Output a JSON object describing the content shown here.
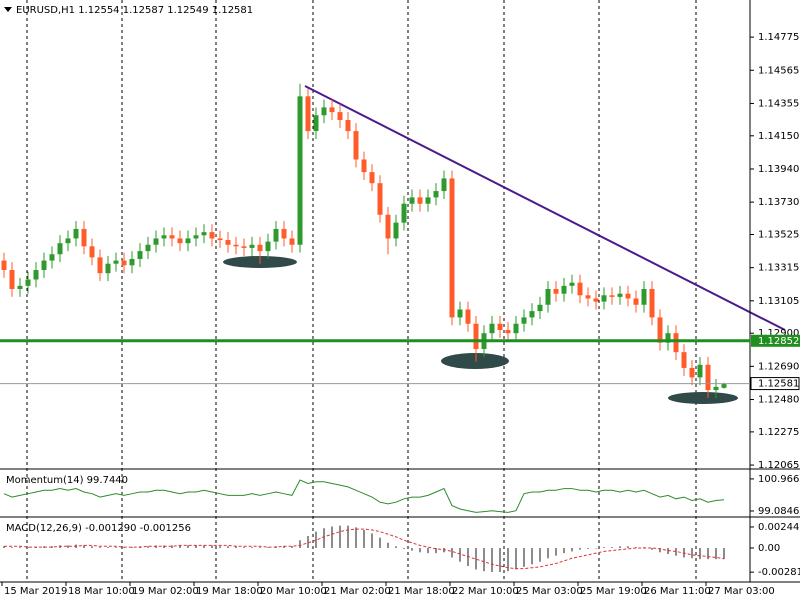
{
  "chart_data": [
    {
      "type": "candlestick",
      "title": "EURUSD,H1  1.12554 1.12587 1.12549 1.12581",
      "up_color": "#2e9a2e",
      "down_color": "#ff5b2b",
      "ylim": [
        1.1204,
        1.1501
      ],
      "yticks": [
        {
          "value": 1.14775,
          "label": "1.14775"
        },
        {
          "value": 1.14565,
          "label": "1.14565"
        },
        {
          "value": 1.14355,
          "label": "1.14355"
        },
        {
          "value": 1.1415,
          "label": "1.14150"
        },
        {
          "value": 1.1394,
          "label": "1.13940"
        },
        {
          "value": 1.1373,
          "label": "1.13730"
        },
        {
          "value": 1.13525,
          "label": "1.13525"
        },
        {
          "value": 1.13315,
          "label": "1.13315"
        },
        {
          "value": 1.13105,
          "label": "1.13105"
        },
        {
          "value": 1.129,
          "label": "1.12900"
        },
        {
          "value": 1.1269,
          "label": "1.12690"
        },
        {
          "value": 1.1248,
          "label": "1.12480"
        },
        {
          "value": 1.12275,
          "label": "1.12275"
        },
        {
          "value": 1.12065,
          "label": "1.12065"
        }
      ],
      "level": 1.12852,
      "level_color": "#1f8f1f",
      "xlabels": [
        "15 Mar 2019",
        "18 Mar 10:00",
        "19 Mar 02:00",
        "19 Mar 18:00",
        "20 Mar 10:00",
        "21 Mar 02:00",
        "21 Mar 18:00",
        "22 Mar 10:00",
        "25 Mar 03:00",
        "25 Mar 19:00",
        "26 Mar 11:00",
        "27 Mar 03:00"
      ],
      "open": [
        1.1336,
        1.133,
        1.1318,
        1.132,
        1.1324,
        1.133,
        1.1336,
        1.134,
        1.1347,
        1.135,
        1.1356,
        1.1345,
        1.1338,
        1.1328,
        1.1334,
        1.1336,
        1.1333,
        1.1337,
        1.1342,
        1.1346,
        1.135,
        1.1352,
        1.135,
        1.1347,
        1.135,
        1.1352,
        1.1354,
        1.135,
        1.1349,
        1.1346,
        1.1345,
        1.1344,
        1.1346,
        1.1342,
        1.1348,
        1.1356,
        1.135,
        1.1346,
        1.144,
        1.1418,
        1.1428,
        1.1433,
        1.143,
        1.1425,
        1.1418,
        1.14,
        1.1392,
        1.1385,
        1.1365,
        1.135,
        1.136,
        1.1372,
        1.1376,
        1.1372,
        1.1376,
        1.138,
        1.1388,
        1.13,
        1.1305,
        1.1296,
        1.128,
        1.129,
        1.1296,
        1.1292,
        1.129,
        1.1296,
        1.13,
        1.1304,
        1.1308,
        1.1318,
        1.1315,
        1.132,
        1.1322,
        1.1314,
        1.1312,
        1.131,
        1.1314,
        1.1313,
        1.1315,
        1.1312,
        1.1308,
        1.1318,
        1.13,
        1.1284,
        1.129,
        1.1278,
        1.1268,
        1.1262,
        1.127,
        1.1254,
        1.12554
      ],
      "high": [
        1.1341,
        1.1335,
        1.1325,
        1.1329,
        1.1335,
        1.1341,
        1.1345,
        1.1352,
        1.1355,
        1.1361,
        1.1361,
        1.135,
        1.1343,
        1.1339,
        1.1341,
        1.1341,
        1.1342,
        1.1347,
        1.1351,
        1.1355,
        1.1357,
        1.1357,
        1.1355,
        1.1355,
        1.1357,
        1.1359,
        1.1359,
        1.1355,
        1.1354,
        1.1351,
        1.135,
        1.1351,
        1.1351,
        1.1353,
        1.1361,
        1.1361,
        1.1355,
        1.1448,
        1.1445,
        1.1433,
        1.1438,
        1.1438,
        1.1435,
        1.143,
        1.1423,
        1.1405,
        1.1397,
        1.139,
        1.137,
        1.1365,
        1.1377,
        1.1381,
        1.1381,
        1.1381,
        1.1385,
        1.1393,
        1.1393,
        1.131,
        1.131,
        1.1301,
        1.1295,
        1.1301,
        1.1301,
        1.1297,
        1.1301,
        1.1305,
        1.1309,
        1.1313,
        1.1323,
        1.1323,
        1.1325,
        1.1327,
        1.1327,
        1.1319,
        1.1317,
        1.1319,
        1.1319,
        1.132,
        1.132,
        1.1317,
        1.1323,
        1.1323,
        1.1305,
        1.1295,
        1.1295,
        1.1283,
        1.1273,
        1.1275,
        1.1275,
        1.1261,
        1.12587
      ],
      "low": [
        1.1325,
        1.1313,
        1.1313,
        1.1315,
        1.1319,
        1.1325,
        1.1331,
        1.1335,
        1.1342,
        1.1345,
        1.134,
        1.1333,
        1.1323,
        1.1323,
        1.1329,
        1.1328,
        1.1328,
        1.1332,
        1.1337,
        1.1341,
        1.1345,
        1.1345,
        1.1342,
        1.1342,
        1.1345,
        1.1347,
        1.1345,
        1.1344,
        1.1341,
        1.134,
        1.1339,
        1.1339,
        1.1334,
        1.1337,
        1.1343,
        1.1345,
        1.1341,
        1.1341,
        1.1413,
        1.1413,
        1.1423,
        1.1425,
        1.142,
        1.1413,
        1.1395,
        1.1387,
        1.138,
        1.136,
        1.134,
        1.1345,
        1.1355,
        1.1367,
        1.1367,
        1.1367,
        1.1371,
        1.1375,
        1.1295,
        1.1295,
        1.1291,
        1.1272,
        1.1275,
        1.1285,
        1.1287,
        1.1285,
        1.1285,
        1.1291,
        1.1295,
        1.1299,
        1.1303,
        1.131,
        1.131,
        1.1315,
        1.1309,
        1.1307,
        1.1305,
        1.1305,
        1.1308,
        1.1308,
        1.1307,
        1.1303,
        1.1303,
        1.1295,
        1.1279,
        1.1279,
        1.1273,
        1.1263,
        1.1257,
        1.1257,
        1.1249,
        1.1249,
        1.12549
      ],
      "close": [
        1.133,
        1.1318,
        1.132,
        1.1324,
        1.133,
        1.1336,
        1.134,
        1.1347,
        1.135,
        1.1356,
        1.1345,
        1.1338,
        1.1328,
        1.1334,
        1.1336,
        1.1333,
        1.1337,
        1.1342,
        1.1346,
        1.135,
        1.1352,
        1.135,
        1.1347,
        1.135,
        1.1352,
        1.1354,
        1.135,
        1.1349,
        1.1346,
        1.1345,
        1.1344,
        1.1346,
        1.1342,
        1.1348,
        1.1356,
        1.135,
        1.1346,
        1.144,
        1.1418,
        1.1428,
        1.1433,
        1.143,
        1.1425,
        1.1418,
        1.14,
        1.1392,
        1.1385,
        1.1365,
        1.135,
        1.136,
        1.1372,
        1.1376,
        1.1372,
        1.1376,
        1.138,
        1.1388,
        1.13,
        1.1305,
        1.1296,
        1.128,
        1.129,
        1.1296,
        1.1292,
        1.129,
        1.1296,
        1.13,
        1.1304,
        1.1308,
        1.1318,
        1.1315,
        1.132,
        1.1322,
        1.1314,
        1.1312,
        1.131,
        1.1314,
        1.1313,
        1.1315,
        1.1312,
        1.1308,
        1.1318,
        1.13,
        1.1284,
        1.129,
        1.1278,
        1.1268,
        1.1262,
        1.127,
        1.1254,
        1.1256,
        1.12581
      ]
    },
    {
      "type": "line",
      "title": "Momentum(14) 99.7440",
      "color": "#2e8b2e",
      "ylim": [
        98.79,
        101.49
      ],
      "yticks": [
        100.966,
        99.0846
      ],
      "values": [
        100.1,
        99.9,
        100.0,
        100.1,
        100.2,
        100.3,
        100.3,
        100.4,
        100.3,
        100.4,
        100.2,
        100.1,
        99.9,
        100.0,
        100.1,
        100.0,
        100.1,
        100.2,
        100.2,
        100.3,
        100.3,
        100.2,
        100.1,
        100.2,
        100.2,
        100.3,
        100.2,
        100.1,
        100.0,
        100.0,
        100.0,
        100.1,
        100.0,
        100.1,
        100.2,
        100.1,
        100.0,
        100.9,
        100.7,
        100.8,
        100.8,
        100.7,
        100.6,
        100.5,
        100.3,
        100.1,
        99.9,
        99.6,
        99.5,
        99.6,
        99.8,
        99.9,
        99.9,
        100.0,
        100.2,
        100.4,
        99.4,
        99.2,
        99.1,
        99.0,
        99.05,
        99.1,
        99.05,
        99.0,
        99.1,
        100.1,
        100.2,
        100.2,
        100.3,
        100.3,
        100.4,
        100.4,
        100.3,
        100.3,
        100.2,
        100.3,
        100.3,
        100.2,
        100.3,
        100.2,
        100.3,
        100.1,
        99.9,
        100.0,
        99.8,
        99.9,
        99.7,
        99.8,
        99.6,
        99.7,
        99.744
      ]
    },
    {
      "type": "macd",
      "title": "MACD(12,26,9) -0.001290 -0.001256",
      "bar_color": "#8c8c8c",
      "signal_color": "#e03030",
      "ylim": [
        -0.00396,
        0.00349
      ],
      "yticks": [
        0.002446,
        {
          "value": 0,
          "label": "0.00"
        },
        -0.002812
      ],
      "histogram": [
        0.0002,
        0.0001,
        0.0001,
        0.0001,
        0.0001,
        0.0002,
        0.0002,
        0.0003,
        0.0003,
        0.0004,
        0.0003,
        0.0002,
        0.0001,
        0.0001,
        0.0001,
        0.0001,
        0.0001,
        0.0002,
        0.0002,
        0.0003,
        0.0003,
        0.0003,
        0.0003,
        0.0003,
        0.0003,
        0.0003,
        0.0003,
        0.0002,
        0.0002,
        0.0002,
        0.0001,
        0.0001,
        0.0001,
        0.0001,
        0.0002,
        0.0002,
        0.0002,
        0.0009,
        0.0014,
        0.0019,
        0.0023,
        0.0025,
        0.0026,
        0.0026,
        0.0024,
        0.0021,
        0.0017,
        0.0012,
        0.0006,
        0.0002,
        -0.0001,
        -0.0003,
        -0.0005,
        -0.0006,
        -0.0006,
        -0.0005,
        -0.0011,
        -0.0016,
        -0.0021,
        -0.0025,
        -0.0027,
        -0.0028,
        -0.0028,
        -0.0027,
        -0.0025,
        -0.0022,
        -0.0019,
        -0.0016,
        -0.0012,
        -0.0009,
        -0.0006,
        -0.0004,
        -0.0002,
        -0.0001,
        0.0,
        0.0001,
        0.0001,
        0.0002,
        0.0002,
        0.0001,
        0.0001,
        -0.0002,
        -0.0005,
        -0.0007,
        -0.0009,
        -0.0011,
        -0.0012,
        -0.0013,
        -0.0013,
        -0.0013,
        -0.00129
      ],
      "signal": [
        0.0002,
        0.0002,
        0.0002,
        0.0001,
        0.0001,
        0.0001,
        0.0001,
        0.0002,
        0.0002,
        0.0002,
        0.0003,
        0.0003,
        0.0002,
        0.0002,
        0.0002,
        0.0001,
        0.0001,
        0.0001,
        0.0002,
        0.0002,
        0.0002,
        0.0002,
        0.0003,
        0.0003,
        0.0003,
        0.0003,
        0.0003,
        0.0003,
        0.0003,
        0.0002,
        0.0002,
        0.0002,
        0.0002,
        0.0001,
        0.0001,
        0.0002,
        0.0002,
        0.0003,
        0.0006,
        0.0009,
        0.0013,
        0.0016,
        0.0019,
        0.0021,
        0.0022,
        0.0022,
        0.0021,
        0.0019,
        0.0016,
        0.0013,
        0.0009,
        0.0006,
        0.0003,
        0.0001,
        -0.0001,
        -0.0002,
        -0.0004,
        -0.0007,
        -0.001,
        -0.0013,
        -0.0016,
        -0.0019,
        -0.0021,
        -0.0023,
        -0.0024,
        -0.0024,
        -0.0023,
        -0.0022,
        -0.002,
        -0.0018,
        -0.0015,
        -0.0012,
        -0.001,
        -0.0008,
        -0.0006,
        -0.0004,
        -0.0003,
        -0.0002,
        -0.0001,
        0.0,
        0.0,
        0.0,
        -0.0001,
        -0.0003,
        -0.0004,
        -0.0006,
        -0.0008,
        -0.0009,
        -0.001,
        -0.0011,
        -0.001256
      ]
    }
  ]
}
